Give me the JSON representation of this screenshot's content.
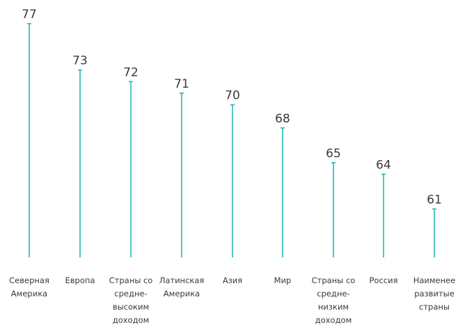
{
  "chart_data": {
    "type": "bar",
    "title": "",
    "xlabel": "",
    "ylabel": "",
    "ylim": [
      0,
      77
    ],
    "grid": false,
    "legend": "none",
    "color": "#26b8b0",
    "categories": [
      [
        "Северная",
        "Америка"
      ],
      [
        "Европа"
      ],
      [
        "Страны со",
        "средне-",
        "высоким",
        "доходом"
      ],
      [
        "Латинская",
        "Америка"
      ],
      [
        "Азия"
      ],
      [
        "Мир"
      ],
      [
        "Страны со",
        "средне-",
        "низким",
        "доходом"
      ],
      [
        "Россия"
      ],
      [
        "Наименее",
        "развитые",
        "страны"
      ]
    ],
    "values": [
      77,
      73,
      72,
      71,
      70,
      68,
      65,
      64,
      61
    ]
  }
}
